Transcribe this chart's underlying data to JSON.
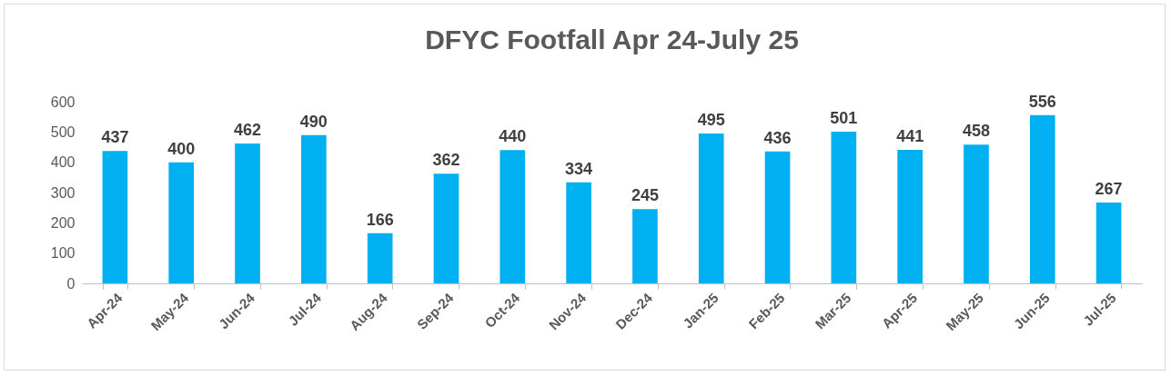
{
  "chart_data": {
    "type": "bar",
    "title": "DFYC Footfall Apr 24-July 25",
    "categories": [
      "Apr-24",
      "May-24",
      "Jun-24",
      "Jul-24",
      "Aug-24",
      "Sep-24",
      "Oct-24",
      "Nov-24",
      "Dec-24",
      "Jan-25",
      "Feb-25",
      "Mar-25",
      "Apr-25",
      "May-25",
      "Jun-25",
      "Jul-25"
    ],
    "values": [
      437,
      400,
      462,
      490,
      166,
      362,
      440,
      334,
      245,
      495,
      436,
      501,
      441,
      458,
      556,
      267
    ],
    "color": "#00b0f0",
    "ylim": [
      0,
      600
    ],
    "yticks": [
      0,
      100,
      200,
      300,
      400,
      500,
      600
    ],
    "grid": false,
    "data_labels": true
  }
}
